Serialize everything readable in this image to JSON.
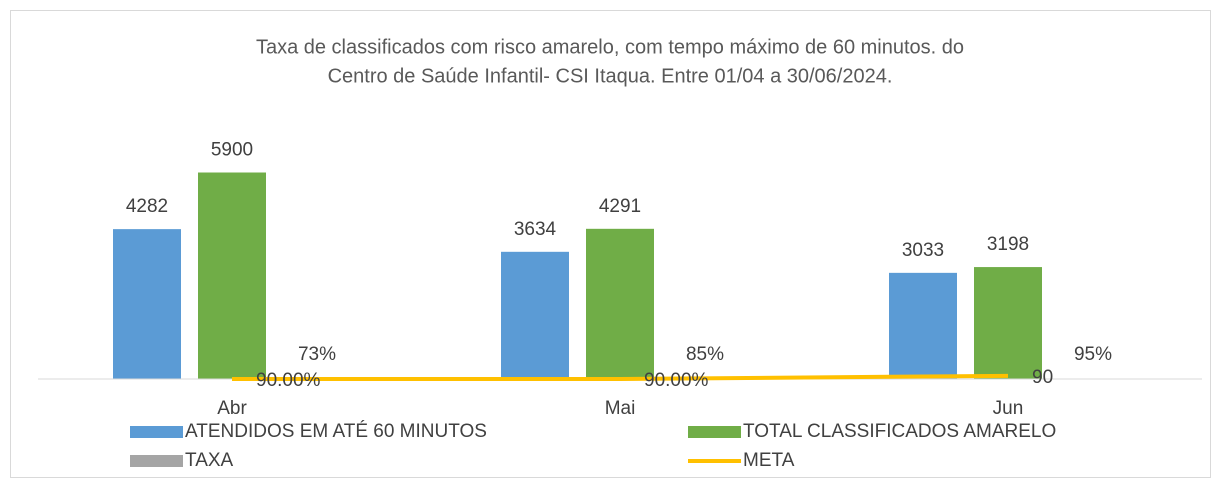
{
  "chart_data": {
    "type": "bar",
    "title": "Taxa de classificados com risco amarelo, com tempo máximo de 60 minutos. do",
    "subtitle": "Centro de Saúde Infantil- CSI Itaqua. Entre 01/04 a 30/06/2024.",
    "categories": [
      "Abr",
      "Mai",
      "Jun"
    ],
    "ylim": [
      0,
      7000
    ],
    "legend": "bottom",
    "series": [
      {
        "name": "ATENDIDOS EM ATÉ 60 MINUTOS",
        "color": "#5b9bd5",
        "type": "bar",
        "values": [
          4282,
          3634,
          3033
        ]
      },
      {
        "name": "TOTAL CLASSIFICADOS AMARELO",
        "color": "#70ad47",
        "type": "bar",
        "values": [
          5900,
          4291,
          3198
        ]
      },
      {
        "name": "TAXA",
        "color": "#a5a5a5",
        "type": "bar",
        "values": [
          0.73,
          0.85,
          0.95
        ],
        "value_labels": [
          "73%",
          "85%",
          "95%"
        ]
      },
      {
        "name": "META",
        "color": "#ffc000",
        "type": "line",
        "values": [
          0.9,
          0.9,
          90
        ],
        "value_labels": [
          "90.00%",
          "90.00%",
          "90"
        ]
      }
    ]
  }
}
